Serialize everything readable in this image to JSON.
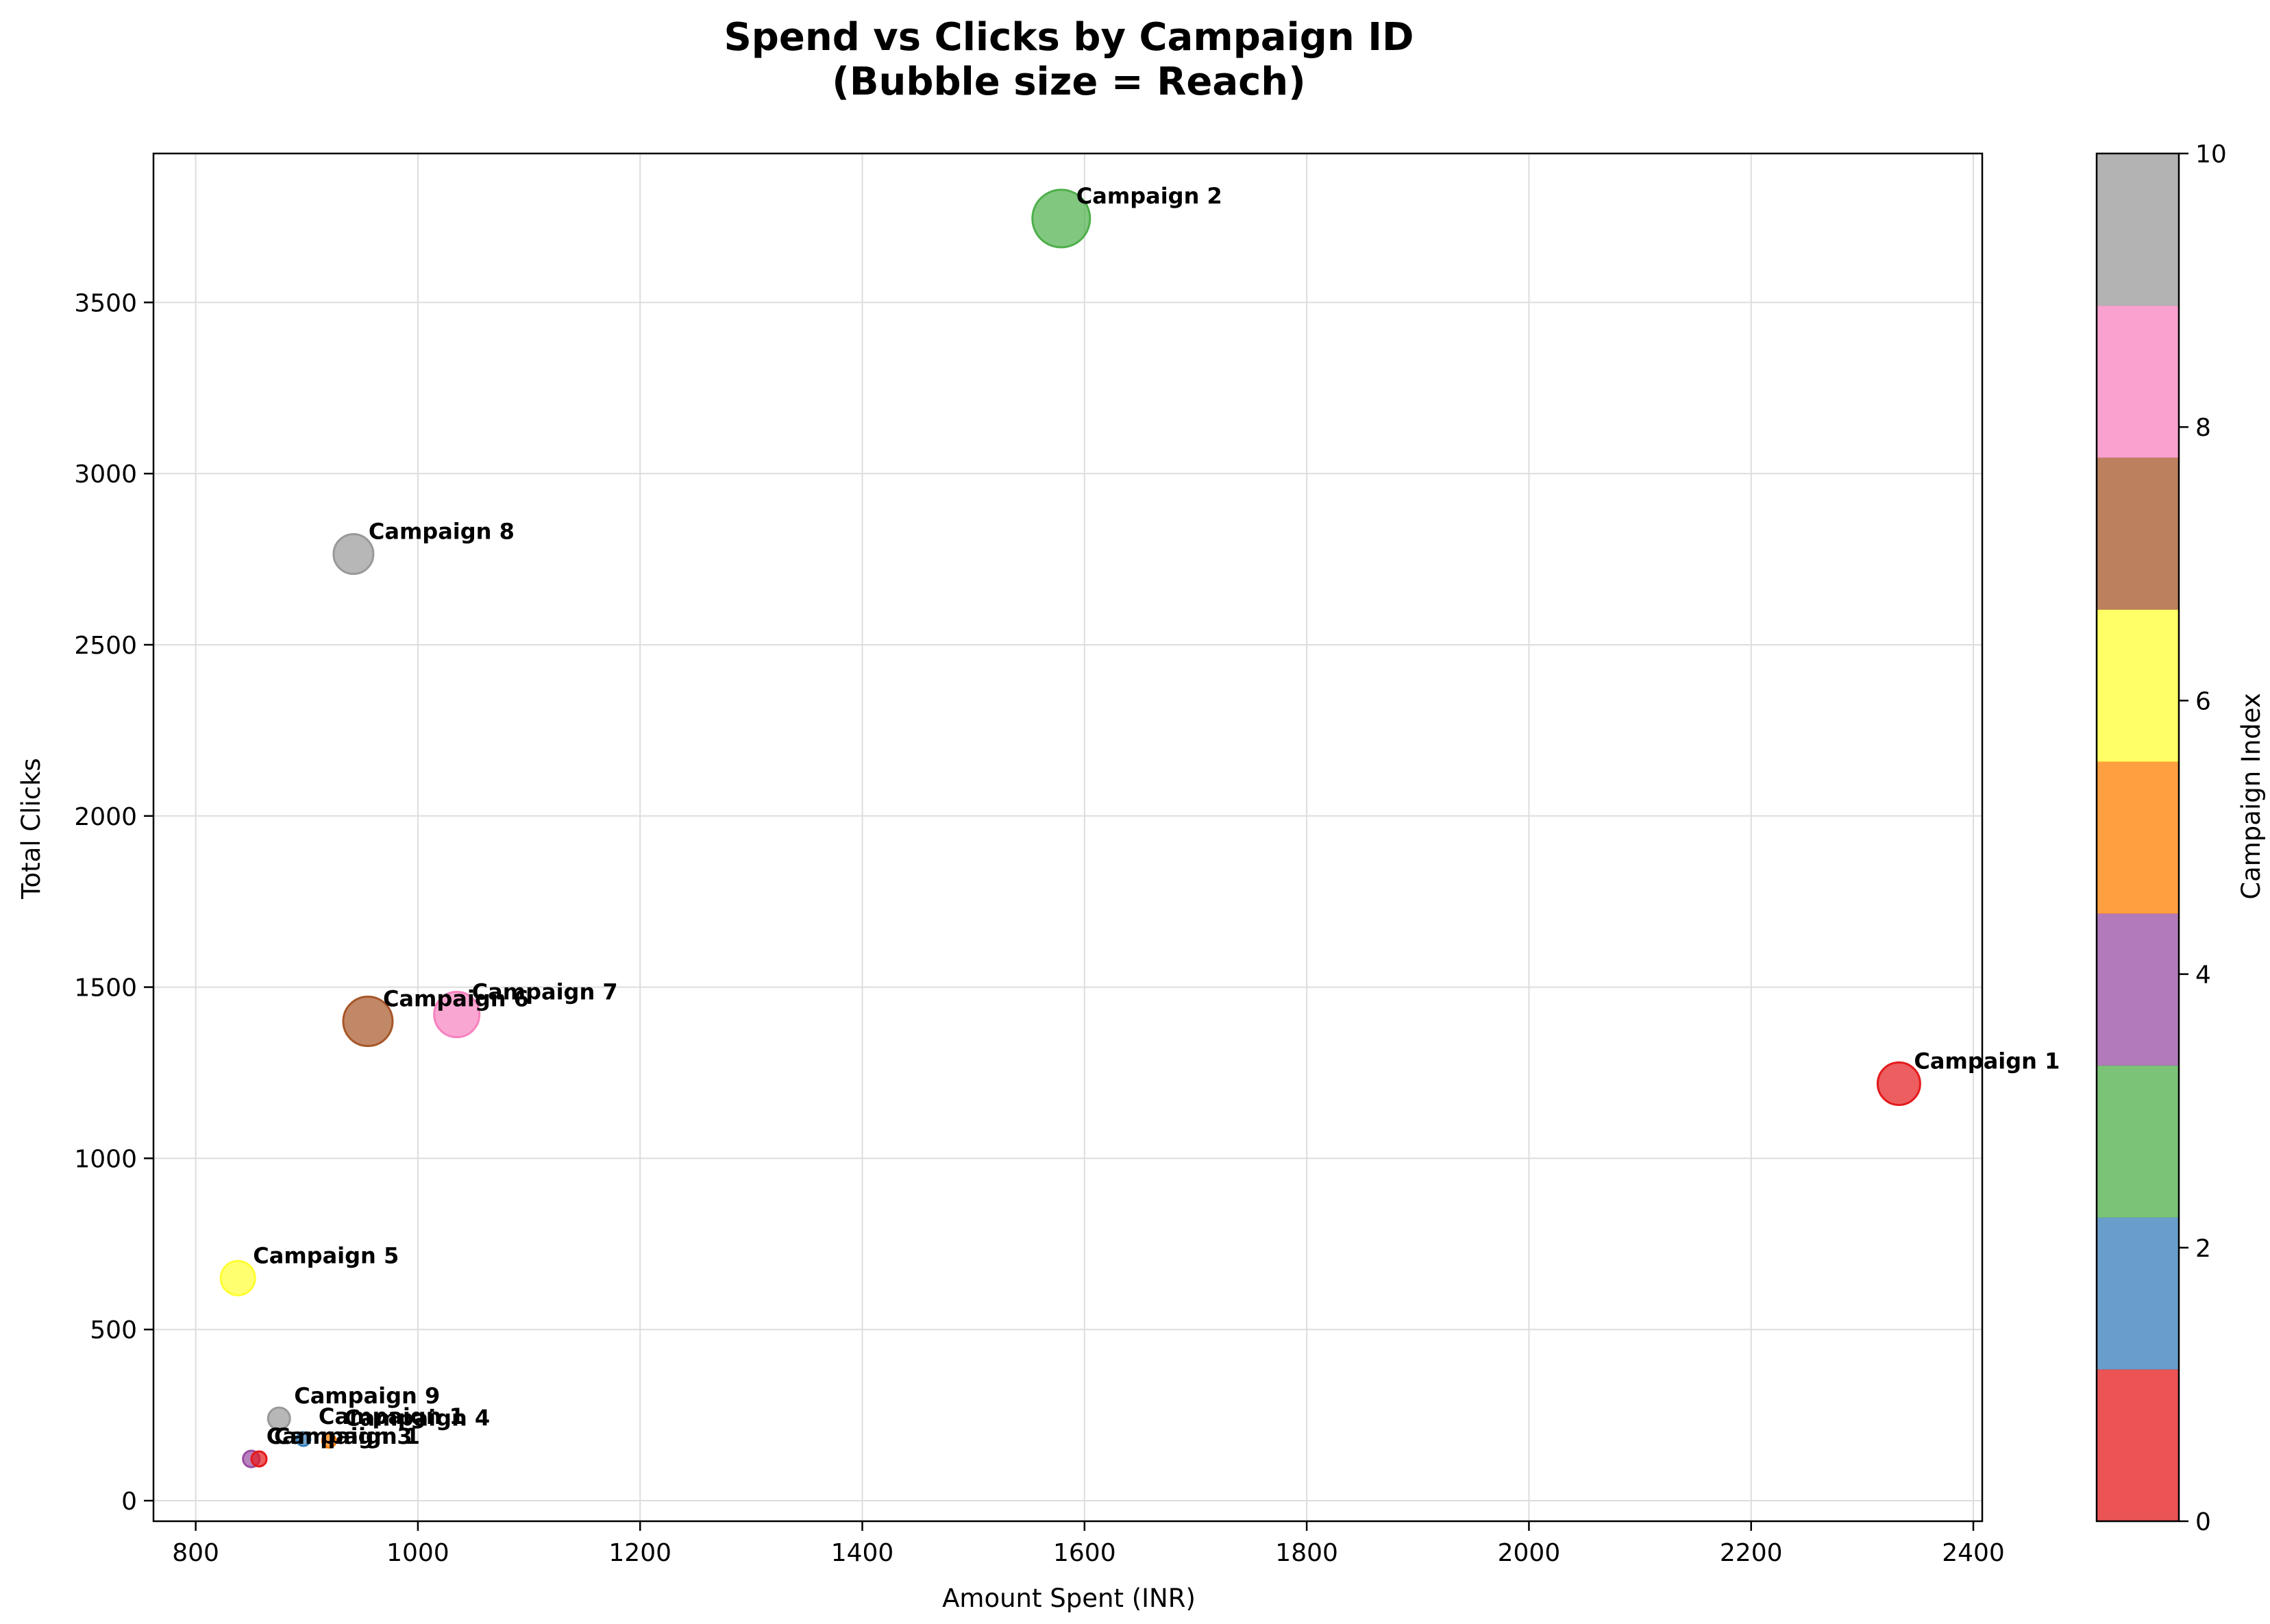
{
  "chart_data": {
    "type": "scatter",
    "title_lines": [
      "Spend vs Clicks by Campaign ID",
      "(Bubble size = Reach)"
    ],
    "xlabel": "Amount Spent (INR)",
    "ylabel": "Total Clicks",
    "xlim": [
      762,
      2408
    ],
    "ylim": [
      -60,
      3935
    ],
    "xticks": [
      800,
      1000,
      1200,
      1400,
      1600,
      1800,
      2000,
      2200,
      2400
    ],
    "yticks": [
      0,
      500,
      1000,
      1500,
      2000,
      2500,
      3000,
      3500
    ],
    "grid": true,
    "points": [
      {
        "label": "Campaign 1",
        "x": 2333,
        "y": 1218,
        "size": 31,
        "color": "#e41a1c"
      },
      {
        "label": "Campaign 2",
        "x": 1579,
        "y": 3745,
        "size": 42,
        "color": "#4daf4a"
      },
      {
        "label": "Campaign 8",
        "x": 942,
        "y": 2765,
        "size": 29,
        "color": "#999999"
      },
      {
        "label": "Campaign 6",
        "x": 955,
        "y": 1400,
        "size": 36,
        "color": "#a65628"
      },
      {
        "label": "Campaign 7",
        "x": 1035,
        "y": 1420,
        "size": 33,
        "color": "#f781bf"
      },
      {
        "label": "Campaign 5",
        "x": 838,
        "y": 650,
        "size": 25,
        "color": "#ffff33"
      },
      {
        "label": "Campaign 9",
        "x": 875,
        "y": 240,
        "size": 16,
        "color": "#999999"
      },
      {
        "label": "Campaign 1",
        "x": 897,
        "y": 180,
        "size": 10,
        "color": "#377eb8"
      },
      {
        "label": "Campaign 4",
        "x": 920,
        "y": 175,
        "size": 10,
        "color": "#ff7f00"
      },
      {
        "label": "Campaign 3",
        "x": 850,
        "y": 122,
        "size": 12,
        "color": "#984ea3"
      },
      {
        "label": "Campaign 1",
        "x": 857,
        "y": 122,
        "size": 11,
        "color": "#e41a1c"
      }
    ],
    "colorbar": {
      "label": "Campaign Index",
      "range": [
        0,
        10
      ],
      "ticks": [
        0,
        2,
        4,
        6,
        8,
        10
      ],
      "colors": [
        "#e41a1c",
        "#377eb8",
        "#4daf4a",
        "#984ea3",
        "#ff7f00",
        "#ffff33",
        "#a65628",
        "#f781bf",
        "#999999"
      ]
    }
  }
}
